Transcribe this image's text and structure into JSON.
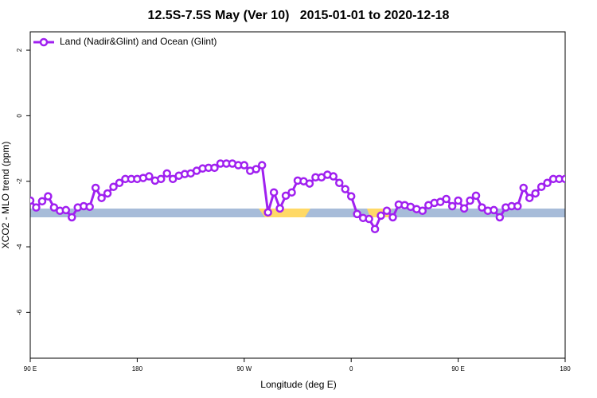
{
  "chart_data": {
    "type": "line",
    "title": "12.5S-7.5S May (Ver 10)   2015-01-01 to 2020-12-18",
    "xlabel": "Longitude (deg E)",
    "ylabel": "XCO2 - MLO trend (ppm)",
    "xlim": [
      90,
      540
    ],
    "ylim": [
      -7.4,
      2.56
    ],
    "xticks": [
      {
        "value": 90,
        "label": "90 E"
      },
      180,
      {
        "value": 270,
        "label": "90 W"
      },
      {
        "value": 360,
        "label": "0"
      },
      {
        "value": 450,
        "label": "90 E"
      },
      {
        "value": 540,
        "label": "180"
      }
    ],
    "yticks": [
      2,
      0,
      -2,
      -4,
      -6
    ],
    "legend": "top-left",
    "x": [
      90,
      95,
      100,
      105,
      110,
      115,
      120,
      125,
      130,
      135,
      140,
      145,
      150,
      155,
      160,
      165,
      170,
      175,
      180,
      185,
      190,
      195,
      200,
      205,
      210,
      215,
      220,
      225,
      230,
      235,
      240,
      245,
      250,
      255,
      260,
      265,
      270,
      275,
      280,
      285,
      290,
      295,
      300,
      305,
      310,
      315,
      320,
      325,
      330,
      335,
      340,
      345,
      350,
      355,
      360,
      365,
      370,
      375,
      380,
      385,
      390,
      395,
      400,
      405,
      410,
      415,
      420,
      425,
      430,
      435,
      440,
      445,
      450,
      455,
      460,
      465,
      470,
      475,
      480,
      485,
      490,
      495,
      500,
      505,
      510,
      515,
      520,
      525,
      530,
      535,
      540
    ],
    "series": [
      {
        "name": "Land (Nadir&Glint) and Ocean (Glint)",
        "color": "#a020f0",
        "values": [
          -2.59,
          -2.8,
          -2.61,
          -2.46,
          -2.8,
          -2.9,
          -2.88,
          -3.1,
          -2.8,
          -2.76,
          -2.78,
          -2.2,
          -2.51,
          -2.37,
          -2.17,
          -2.05,
          -1.93,
          -1.93,
          -1.93,
          -1.9,
          -1.85,
          -1.98,
          -1.93,
          -1.76,
          -1.93,
          -1.83,
          -1.78,
          -1.76,
          -1.68,
          -1.61,
          -1.59,
          -1.59,
          -1.46,
          -1.46,
          -1.46,
          -1.51,
          -1.51,
          -1.68,
          -1.63,
          -1.51,
          -2.95,
          -2.34,
          -2.83,
          -2.44,
          -2.34,
          -1.98,
          -2.0,
          -2.07,
          -1.88,
          -1.88,
          -1.8,
          -1.85,
          -2.05,
          -2.24,
          -2.46,
          -3.0,
          -3.12,
          -3.15,
          -3.46,
          -3.05,
          -2.9,
          -3.1,
          -2.71,
          -2.73,
          -2.78,
          -2.85,
          -2.9,
          -2.73,
          -2.66,
          -2.63,
          -2.54,
          -2.76,
          -2.59,
          -2.83,
          -2.59,
          -2.44,
          -2.8,
          -2.9,
          -2.88,
          -3.1,
          -2.8,
          -2.76,
          -2.76,
          -2.2,
          -2.51,
          -2.37,
          -2.17,
          -2.05,
          -1.93,
          -1.93,
          -1.93
        ]
      }
    ]
  }
}
